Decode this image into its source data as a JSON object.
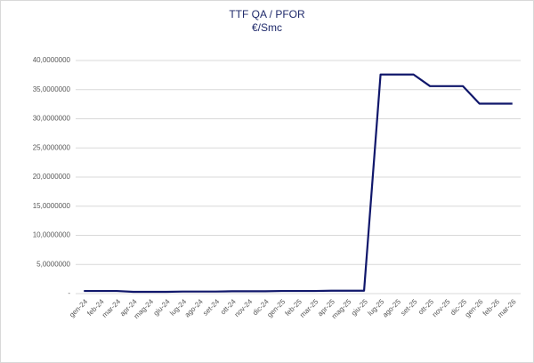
{
  "chart_data": {
    "type": "line",
    "title": "TTF QA / PFOR",
    "subtitle": "€/Smc",
    "categories": [
      "gen-24",
      "feb-24",
      "mar-24",
      "apr-24",
      "mag-24",
      "giu-24",
      "lug-24",
      "ago-24",
      "set-24",
      "ott-24",
      "nov-24",
      "dic-24",
      "gen-25",
      "feb-25",
      "mar-25",
      "apr-25",
      "mag-25",
      "giu-25",
      "lug-25",
      "ago-25",
      "set-25",
      "ott-25",
      "nov-25",
      "dic-25",
      "gen-26",
      "feb-26",
      "mar-26"
    ],
    "series": [
      {
        "name": "TTF QA / PFOR",
        "color": "#10176b",
        "values": [
          0.45,
          0.45,
          0.45,
          0.3,
          0.3,
          0.3,
          0.35,
          0.35,
          0.35,
          0.4,
          0.4,
          0.4,
          0.45,
          0.45,
          0.45,
          0.5,
          0.5,
          0.5,
          37.6,
          37.6,
          37.6,
          35.6,
          35.6,
          35.6,
          32.6,
          32.6,
          32.6
        ]
      }
    ],
    "ylim": [
      0,
      40
    ],
    "yticks": [
      {
        "value": 0,
        "label": "-"
      },
      {
        "value": 5,
        "label": "5,0000000"
      },
      {
        "value": 10,
        "label": "10,0000000"
      },
      {
        "value": 15,
        "label": "15,0000000"
      },
      {
        "value": 20,
        "label": "20,0000000"
      },
      {
        "value": 25,
        "label": "25,0000000"
      },
      {
        "value": 30,
        "label": "30,0000000"
      },
      {
        "value": 35,
        "label": "35,0000000"
      },
      {
        "value": 40,
        "label": "40,0000000"
      }
    ],
    "grid": true
  }
}
